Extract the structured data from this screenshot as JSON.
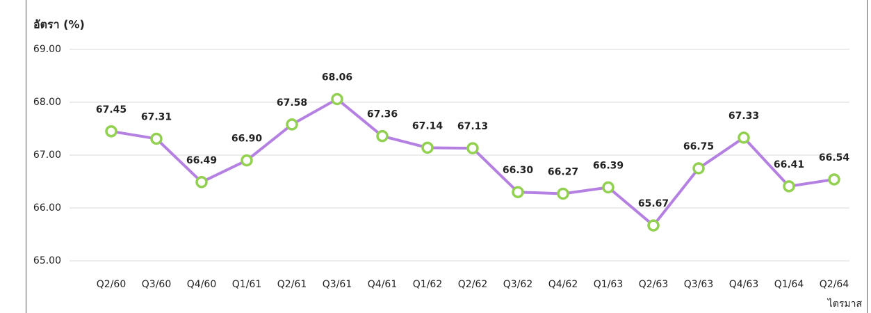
{
  "chart_data": {
    "type": "line",
    "y_label": "อัตรา (%)",
    "x_label": "ไตรมาส",
    "categories": [
      "Q2/60",
      "Q3/60",
      "Q4/60",
      "Q1/61",
      "Q2/61",
      "Q3/61",
      "Q4/61",
      "Q1/62",
      "Q2/62",
      "Q3/62",
      "Q4/62",
      "Q1/63",
      "Q2/63",
      "Q3/63",
      "Q4/63",
      "Q1/64",
      "Q2/64"
    ],
    "series": [
      {
        "name": "อัตรา",
        "color": "#b480e2",
        "marker_color": "#92d050",
        "values": [
          67.45,
          67.31,
          66.49,
          66.9,
          67.58,
          68.06,
          67.36,
          67.14,
          67.13,
          66.3,
          66.27,
          66.39,
          65.67,
          66.75,
          67.33,
          66.41,
          66.54
        ],
        "value_labels": [
          "67.45",
          "67.31",
          "66.49",
          "66.90",
          "67.58",
          "68.06",
          "67.36",
          "67.14",
          "67.13",
          "66.30",
          "66.27",
          "66.39",
          "65.67",
          "66.75",
          "67.33",
          "66.41",
          "66.54"
        ]
      }
    ],
    "ylim": [
      65,
      69
    ],
    "yticks": [
      {
        "value": 65,
        "label": "65.00"
      },
      {
        "value": 66,
        "label": "66.00"
      },
      {
        "value": 67,
        "label": "67.00"
      },
      {
        "value": 68,
        "label": "68.00"
      },
      {
        "value": 69,
        "label": "69.00"
      }
    ],
    "grid": true
  }
}
